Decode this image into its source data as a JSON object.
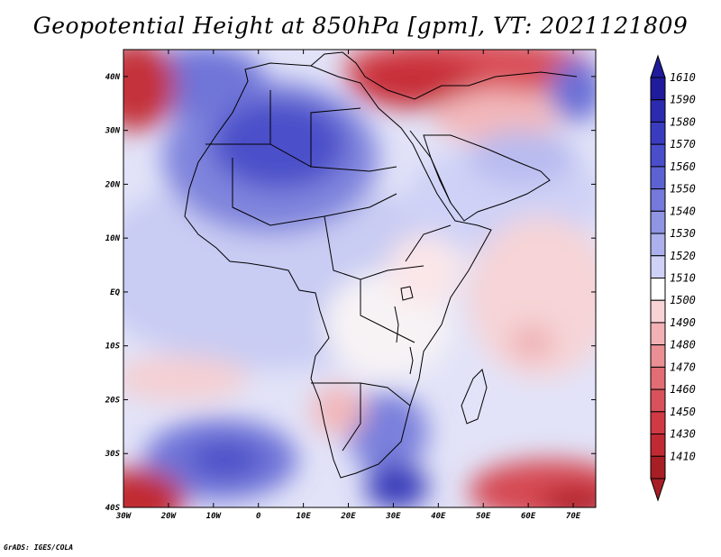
{
  "title": "Geopotential Height at 850hPa [gpm], VT: 2021121809",
  "credit": "GrADS: IGES/COLA",
  "map": {
    "lon_range": [
      -30,
      75
    ],
    "lat_range": [
      -40,
      45
    ],
    "lon_ticks": [
      {
        "value": -30,
        "label": "30W"
      },
      {
        "value": -20,
        "label": "20W"
      },
      {
        "value": -10,
        "label": "10W"
      },
      {
        "value": 0,
        "label": "0"
      },
      {
        "value": 10,
        "label": "10E"
      },
      {
        "value": 20,
        "label": "20E"
      },
      {
        "value": 30,
        "label": "30E"
      },
      {
        "value": 40,
        "label": "40E"
      },
      {
        "value": 50,
        "label": "50E"
      },
      {
        "value": 60,
        "label": "60E"
      },
      {
        "value": 70,
        "label": "70E"
      }
    ],
    "lat_ticks": [
      {
        "value": 40,
        "label": "40N"
      },
      {
        "value": 30,
        "label": "30N"
      },
      {
        "value": 20,
        "label": "20N"
      },
      {
        "value": 10,
        "label": "10N"
      },
      {
        "value": 0,
        "label": "EQ"
      },
      {
        "value": -10,
        "label": "10S"
      },
      {
        "value": -20,
        "label": "20S"
      },
      {
        "value": -30,
        "label": "30S"
      },
      {
        "value": -40,
        "label": "40S"
      }
    ]
  },
  "colorbar": {
    "levels": [
      {
        "label": "1610",
        "color": "#1f1b9c"
      },
      {
        "label": "1590",
        "color": "#2b2baf"
      },
      {
        "label": "1580",
        "color": "#3a3cc0"
      },
      {
        "label": "1570",
        "color": "#4a4ecb"
      },
      {
        "label": "1560",
        "color": "#5d62d3"
      },
      {
        "label": "1550",
        "color": "#7479db"
      },
      {
        "label": "1540",
        "color": "#8f94e3"
      },
      {
        "label": "1530",
        "color": "#acb0ec"
      },
      {
        "label": "1520",
        "color": "#cfd1f6"
      },
      {
        "label": "1510",
        "color": "#ffffff"
      },
      {
        "label": "1500",
        "color": "#f8d3d5"
      },
      {
        "label": "1490",
        "color": "#f2b1b4"
      },
      {
        "label": "1480",
        "color": "#ea9095"
      },
      {
        "label": "1470",
        "color": "#e26d74"
      },
      {
        "label": "1460",
        "color": "#d9525b"
      },
      {
        "label": "1450",
        "color": "#cf3a44"
      },
      {
        "label": "1430",
        "color": "#c12a33"
      },
      {
        "label": "1410",
        "color": "#a81e25"
      }
    ]
  }
}
